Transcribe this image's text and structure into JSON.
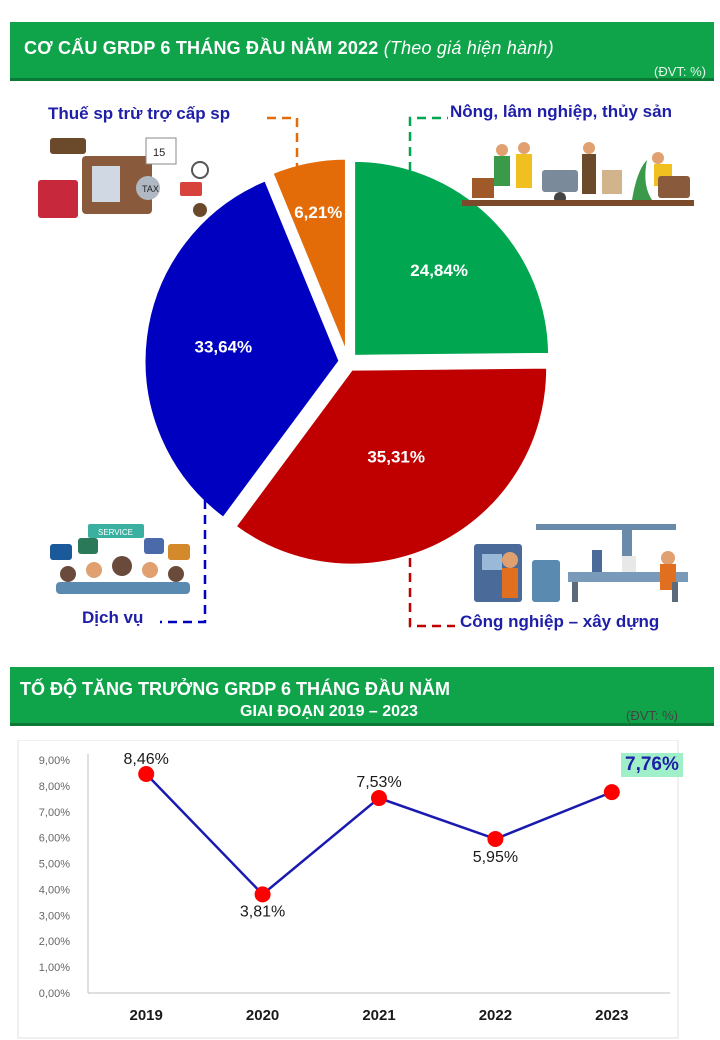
{
  "pie_section": {
    "title": "CƠ CẤU GRDP 6 THÁNG ĐẦU NĂM 2022",
    "subtitle": "(Theo giá hiện hành)",
    "unit": "(ĐVT: %)",
    "colors": {
      "Nông, lâm nghiệp, thủy sản": "#00a650",
      "Công nghiệp – xây dựng": "#c00000",
      "Dịch vụ": "#0000c0",
      "Thuế sp trừ trợ cấp sp": "#e36c09"
    }
  },
  "line_section": {
    "title_line1": "TỐ ĐỘ TĂNG TRƯỞNG GRDP 6 THÁNG ĐẦU NĂM",
    "title_line2": "GIAI ĐOẠN 2019 – 2023",
    "unit": "(ĐVT: %)",
    "highlight_value": "7,76%",
    "line_color": "#1a1ab0",
    "marker_color": "#ff0000"
  },
  "chart_data": [
    {
      "type": "pie",
      "title": "CƠ CẤU GRDP 6 THÁNG ĐẦU NĂM 2022",
      "categories": [
        "Nông, lâm nghiệp, thủy sản",
        "Công nghiệp – xây dựng",
        "Dịch vụ",
        "Thuế sp trừ trợ cấp sp"
      ],
      "values": [
        24.84,
        35.31,
        33.64,
        6.21
      ],
      "value_labels": [
        "24,84%",
        "35,31%",
        "33,64%",
        "6,21%"
      ]
    },
    {
      "type": "line",
      "title": "TỐ ĐỘ TĂNG TRƯỞNG GRDP 6 THÁNG ĐẦU NĂM GIAI ĐOẠN 2019 – 2023",
      "x": [
        "2019",
        "2020",
        "2021",
        "2022",
        "2023"
      ],
      "values": [
        8.46,
        3.81,
        7.53,
        5.95,
        7.76
      ],
      "value_labels": [
        "8,46%",
        "3,81%",
        "7,53%",
        "5,95%",
        "7,76%"
      ],
      "ylim": [
        0,
        9
      ],
      "yticks": [
        "0,00%",
        "1,00%",
        "2,00%",
        "3,00%",
        "4,00%",
        "5,00%",
        "6,00%",
        "7,00%",
        "8,00%",
        "9,00%"
      ]
    }
  ]
}
